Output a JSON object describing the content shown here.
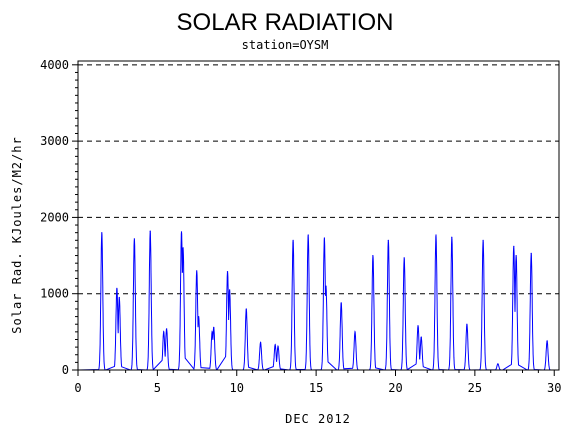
{
  "chart_data": {
    "type": "line",
    "title": "SOLAR RADIATION",
    "subtitle": "station=OYSM",
    "xlabel": "DEC 2012",
    "ylabel": "Solar Rad. KJoules/M2/hr",
    "xlim": [
      0,
      30.3
    ],
    "ylim": [
      0,
      4050
    ],
    "x_ticks": [
      0,
      5,
      10,
      15,
      20,
      25,
      30
    ],
    "y_ticks": [
      0,
      1000,
      2000,
      3000,
      4000
    ],
    "y_gridlines": [
      1000,
      2000,
      3000,
      4000
    ],
    "grid_style": "dashed",
    "series": [
      {
        "color": "#0000ff",
        "days": [
          {
            "day": 1,
            "peaks": [
              [
                1.5,
                1800
              ]
            ]
          },
          {
            "day": 2,
            "peaks": [
              [
                2.45,
                1070
              ],
              [
                2.6,
                950
              ]
            ]
          },
          {
            "day": 3,
            "peaks": [
              [
                3.55,
                1720
              ]
            ]
          },
          {
            "day": 4,
            "peaks": [
              [
                4.55,
                1820
              ]
            ]
          },
          {
            "day": 5,
            "peaks": [
              [
                5.4,
                500
              ],
              [
                5.58,
                540
              ]
            ]
          },
          {
            "day": 6,
            "peaks": [
              [
                6.52,
                1810
              ],
              [
                6.62,
                1600
              ]
            ]
          },
          {
            "day": 7,
            "peaks": [
              [
                7.48,
                1300
              ],
              [
                7.6,
                700
              ]
            ]
          },
          {
            "day": 8,
            "peaks": [
              [
                8.45,
                500
              ],
              [
                8.55,
                560
              ]
            ]
          },
          {
            "day": 9,
            "peaks": [
              [
                9.42,
                1290
              ],
              [
                9.55,
                1050
              ]
            ]
          },
          {
            "day": 10,
            "peaks": [
              [
                10.6,
                800
              ]
            ]
          },
          {
            "day": 11,
            "peaks": [
              [
                11.5,
                360
              ]
            ]
          },
          {
            "day": 12,
            "peaks": [
              [
                12.42,
                330
              ],
              [
                12.6,
                310
              ]
            ]
          },
          {
            "day": 13,
            "peaks": [
              [
                13.55,
                1700
              ]
            ]
          },
          {
            "day": 14,
            "peaks": [
              [
                14.5,
                1770
              ]
            ]
          },
          {
            "day": 15,
            "peaks": [
              [
                15.52,
                1730
              ],
              [
                15.62,
                1100
              ]
            ]
          },
          {
            "day": 16,
            "peaks": [
              [
                16.58,
                880
              ]
            ]
          },
          {
            "day": 17,
            "peaks": [
              [
                17.45,
                500
              ]
            ]
          },
          {
            "day": 18,
            "peaks": [
              [
                18.58,
                1500
              ]
            ]
          },
          {
            "day": 19,
            "peaks": [
              [
                19.55,
                1700
              ]
            ]
          },
          {
            "day": 20,
            "peaks": [
              [
                20.55,
                1470
              ]
            ]
          },
          {
            "day": 21,
            "peaks": [
              [
                21.42,
                580
              ],
              [
                21.62,
                430
              ]
            ]
          },
          {
            "day": 22,
            "peaks": [
              [
                22.55,
                1770
              ]
            ]
          },
          {
            "day": 23,
            "peaks": [
              [
                23.55,
                1740
              ]
            ]
          },
          {
            "day": 24,
            "peaks": [
              [
                24.5,
                600
              ]
            ]
          },
          {
            "day": 25,
            "peaks": [
              [
                25.52,
                1700
              ]
            ]
          },
          {
            "day": 26,
            "peaks": [
              [
                26.45,
                80
              ]
            ]
          },
          {
            "day": 27,
            "peaks": [
              [
                27.45,
                1620
              ],
              [
                27.6,
                1500
              ]
            ]
          },
          {
            "day": 28,
            "peaks": [
              [
                28.55,
                1530
              ]
            ]
          },
          {
            "day": 29,
            "peaks": [
              [
                29.55,
                380
              ]
            ]
          }
        ]
      }
    ]
  }
}
